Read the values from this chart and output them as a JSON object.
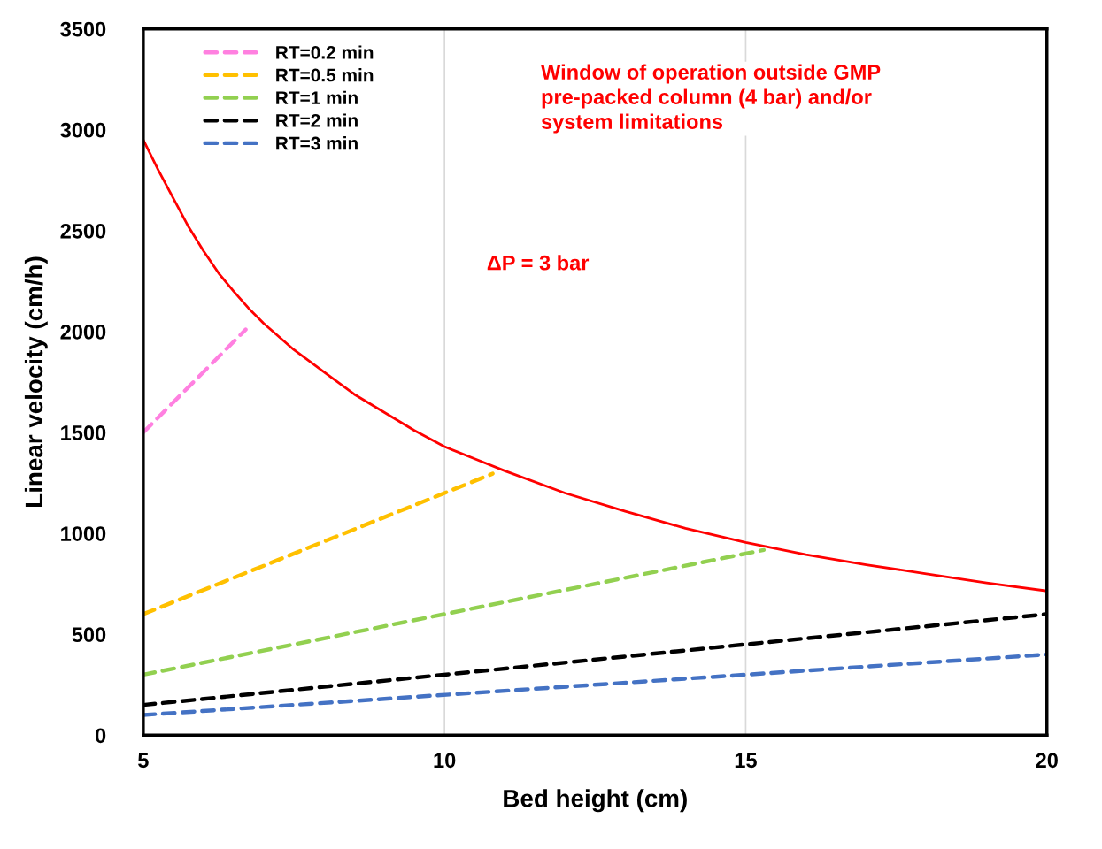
{
  "chart_data": {
    "type": "line",
    "xlabel": "Bed height (cm)",
    "ylabel": "Linear velocity (cm/h)",
    "xlim": [
      5,
      20
    ],
    "xticks": [
      5,
      10,
      15,
      20
    ],
    "ylim": [
      0,
      3500
    ],
    "yticks": [
      0,
      500,
      1000,
      1500,
      2000,
      2500,
      3000,
      3500
    ],
    "grid": "x",
    "legend": "top left",
    "marker": "none",
    "annotations": [
      "Window of operation outside GMP\npre-packed column (4 bar) and/or\nsystem limitations",
      "ΔP = 3 bar"
    ],
    "series": [
      {
        "name": "RT=0.2 min",
        "color": "#ff80e0",
        "line_style": "dashed",
        "x": [
          5,
          6.7
        ],
        "values": [
          1500,
          2010
        ]
      },
      {
        "name": "RT=0.5 min",
        "color": "#ffc000",
        "line_style": "dashed",
        "x": [
          5,
          10.8
        ],
        "values": [
          600,
          1296
        ]
      },
      {
        "name": "RT=1 min",
        "color": "#92d050",
        "line_style": "dashed",
        "x": [
          5,
          15.3
        ],
        "values": [
          300,
          918
        ]
      },
      {
        "name": "RT=2 min",
        "color": "#000000",
        "line_style": "dashed",
        "x": [
          5,
          20
        ],
        "values": [
          150,
          600
        ]
      },
      {
        "name": "RT=3 min",
        "color": "#4472c4",
        "line_style": "dashed",
        "x": [
          5,
          20
        ],
        "values": [
          100,
          400
        ]
      },
      {
        "color": "#ff0000",
        "line_style": "solid",
        "x": [
          5,
          5.25,
          5.5,
          5.75,
          6,
          6.25,
          6.5,
          6.75,
          7,
          7.5,
          8,
          8.5,
          9,
          9.5,
          10,
          10.5,
          11,
          12,
          13,
          14,
          15,
          16,
          17,
          18,
          19,
          20
        ],
        "values": [
          2950,
          2800,
          2660,
          2520,
          2400,
          2290,
          2200,
          2115,
          2040,
          1910,
          1800,
          1690,
          1600,
          1510,
          1430,
          1370,
          1310,
          1200,
          1110,
          1025,
          955,
          895,
          845,
          800,
          755,
          715
        ]
      }
    ]
  }
}
